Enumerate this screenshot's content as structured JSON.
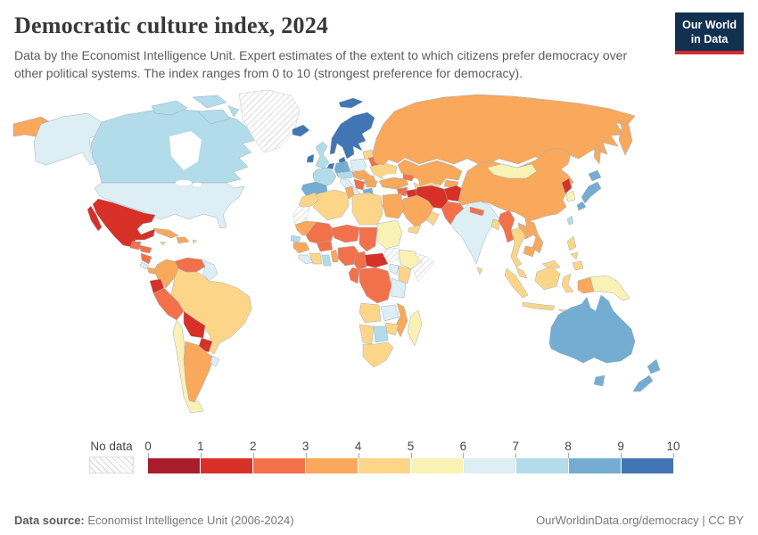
{
  "header": {
    "title": "Democratic culture index, 2024",
    "subtitle": "Data by the Economist Intelligence Unit. Expert estimates of the extent to which citizens prefer democracy over other political systems. The index ranges from 0 to 10 (strongest preference for democracy).",
    "logo": {
      "line1": "Our World",
      "line2": "in Data",
      "bg_color": "#12304F",
      "accent_color": "#D7282F"
    }
  },
  "legend": {
    "no_data_label": "No data",
    "ticks": [
      "0",
      "1",
      "2",
      "3",
      "4",
      "5",
      "6",
      "7",
      "8",
      "9",
      "10"
    ]
  },
  "footer": {
    "source_label": "Data source:",
    "source_value": "Economist Intelligence Unit (2006-2024)",
    "link": "OurWorldinData.org/democracy",
    "separator": "|",
    "license": "CC BY"
  },
  "chart_data": {
    "type": "heatmap",
    "subtype": "choropleth-world-map",
    "title": "Democratic culture index, 2024",
    "legend_position": "bottom",
    "scale": {
      "min": 0,
      "max": 10,
      "no_data_style": "hatched",
      "bins": [
        {
          "range": "0-1",
          "color": "#A81C2B"
        },
        {
          "range": "1-2",
          "color": "#D73027"
        },
        {
          "range": "2-3",
          "color": "#F2714B"
        },
        {
          "range": "3-4",
          "color": "#F9A85C"
        },
        {
          "range": "4-5",
          "color": "#FDD588"
        },
        {
          "range": "5-6",
          "color": "#FAF2B4"
        },
        {
          "range": "6-7",
          "color": "#DDEEF5"
        },
        {
          "range": "7-8",
          "color": "#B3DCEA"
        },
        {
          "range": "8-9",
          "color": "#74ADD1"
        },
        {
          "range": "9-10",
          "color": "#4275B4"
        }
      ]
    },
    "countries": [
      {
        "key": "canada",
        "name": "Canada",
        "range": "7-8",
        "bin": 7
      },
      {
        "key": "arctic-islands",
        "name": "Canada (Arctic islands)",
        "range": "7-8",
        "bin": 7
      },
      {
        "key": "alaska",
        "name": "United States (Alaska)",
        "range": "6-7",
        "bin": 6
      },
      {
        "key": "usa",
        "name": "United States",
        "range": "6-7",
        "bin": 6
      },
      {
        "key": "greenland",
        "name": "Greenland",
        "range": "No data",
        "bin": -1
      },
      {
        "key": "mexico",
        "name": "Mexico",
        "range": "1-2",
        "bin": 1
      },
      {
        "key": "guatemala",
        "name": "Guatemala",
        "range": "2-3",
        "bin": 2
      },
      {
        "key": "honduras",
        "name": "Honduras",
        "range": "2-3",
        "bin": 2
      },
      {
        "key": "nicaragua",
        "name": "Nicaragua",
        "range": "2-3",
        "bin": 2
      },
      {
        "key": "costa-rica",
        "name": "Costa Rica",
        "range": "6-7",
        "bin": 6
      },
      {
        "key": "panama",
        "name": "Panama",
        "range": "3-4",
        "bin": 3
      },
      {
        "key": "cuba",
        "name": "Cuba",
        "range": "3-4",
        "bin": 3
      },
      {
        "key": "jamaica",
        "name": "Jamaica",
        "range": "4-5",
        "bin": 4
      },
      {
        "key": "hispaniola",
        "name": "Haiti / Dominican Republic",
        "range": "3-4",
        "bin": 3
      },
      {
        "key": "puerto-rico",
        "name": "Puerto Rico",
        "range": "4-5",
        "bin": 4
      },
      {
        "key": "colombia",
        "name": "Colombia",
        "range": "3-4",
        "bin": 3
      },
      {
        "key": "venezuela",
        "name": "Venezuela",
        "range": "2-3",
        "bin": 2
      },
      {
        "key": "guyanas",
        "name": "Guyana / Suriname",
        "range": "6-7",
        "bin": 6
      },
      {
        "key": "ecuador",
        "name": "Ecuador",
        "range": "1-2",
        "bin": 1
      },
      {
        "key": "peru",
        "name": "Peru",
        "range": "2-3",
        "bin": 2
      },
      {
        "key": "brazil",
        "name": "Brazil",
        "range": "4-5",
        "bin": 4
      },
      {
        "key": "bolivia",
        "name": "Bolivia",
        "range": "1-2",
        "bin": 1
      },
      {
        "key": "paraguay",
        "name": "Paraguay",
        "range": "1-2",
        "bin": 1
      },
      {
        "key": "chile",
        "name": "Chile",
        "range": "5-6",
        "bin": 5
      },
      {
        "key": "argentina",
        "name": "Argentina",
        "range": "3-4",
        "bin": 3
      },
      {
        "key": "uruguay",
        "name": "Uruguay",
        "range": "6-7",
        "bin": 6
      },
      {
        "key": "iceland",
        "name": "Iceland",
        "range": "9-10",
        "bin": 9
      },
      {
        "key": "svalbard",
        "name": "Svalbard (Norway)",
        "range": "9-10",
        "bin": 9
      },
      {
        "key": "scandinavia",
        "name": "Norway / Sweden / Finland",
        "range": "9-10",
        "bin": 9
      },
      {
        "key": "denmark",
        "name": "Denmark",
        "range": "9-10",
        "bin": 9
      },
      {
        "key": "ireland",
        "name": "Ireland",
        "range": "9-10",
        "bin": 9
      },
      {
        "key": "uk",
        "name": "United Kingdom",
        "range": "7-8",
        "bin": 7
      },
      {
        "key": "netherlands",
        "name": "Netherlands / Belgium",
        "range": "9-10",
        "bin": 9
      },
      {
        "key": "germany",
        "name": "Germany",
        "range": "8-9",
        "bin": 8
      },
      {
        "key": "france",
        "name": "France",
        "range": "7-8",
        "bin": 7
      },
      {
        "key": "iberia",
        "name": "Spain / Portugal",
        "range": "8-9",
        "bin": 8
      },
      {
        "key": "italy",
        "name": "Italy",
        "range": "6-7",
        "bin": 6
      },
      {
        "key": "alpine",
        "name": "Switzerland / Austria",
        "range": "7-8",
        "bin": 7
      },
      {
        "key": "poland",
        "name": "Poland",
        "range": "6-7",
        "bin": 6
      },
      {
        "key": "central-europe",
        "name": "Czechia / Slovakia / Hungary",
        "range": "3-4",
        "bin": 3
      },
      {
        "key": "baltics",
        "name": "Baltic states",
        "range": "4-5",
        "bin": 4
      },
      {
        "key": "belarus",
        "name": "Belarus",
        "range": "2-3",
        "bin": 2
      },
      {
        "key": "ukraine",
        "name": "Ukraine",
        "range": "4-5",
        "bin": 4
      },
      {
        "key": "romania",
        "name": "Romania",
        "range": "3-4",
        "bin": 3
      },
      {
        "key": "bulgaria",
        "name": "Bulgaria",
        "range": "3-4",
        "bin": 3
      },
      {
        "key": "balkans",
        "name": "Western Balkans",
        "range": "2-3",
        "bin": 2
      },
      {
        "key": "greece",
        "name": "Greece",
        "range": "8-9",
        "bin": 8
      },
      {
        "key": "russia",
        "name": "Russia",
        "range": "3-4",
        "bin": 3
      },
      {
        "key": "chukotka",
        "name": "Russia (Chukotka)",
        "range": "3-4",
        "bin": 3
      },
      {
        "key": "kazakhstan",
        "name": "Kazakhstan",
        "range": "3-4",
        "bin": 3
      },
      {
        "key": "uzbek-turkmen",
        "name": "Uzbekistan / Turkmenistan",
        "range": "4-5",
        "bin": 4
      },
      {
        "key": "kyrgyz-tajik",
        "name": "Kyrgyzstan / Tajikistan",
        "range": "3-4",
        "bin": 3
      },
      {
        "key": "caucasus",
        "name": "Caucasus",
        "range": "2-3",
        "bin": 2
      },
      {
        "key": "turkey",
        "name": "Turkey",
        "range": "3-4",
        "bin": 3
      },
      {
        "key": "syria",
        "name": "Syria",
        "range": "2-3",
        "bin": 2
      },
      {
        "key": "jordan-israel",
        "name": "Jordan / Israel",
        "range": "3-4",
        "bin": 3
      },
      {
        "key": "iraq",
        "name": "Iraq",
        "range": "1-2",
        "bin": 1
      },
      {
        "key": "iran",
        "name": "Iran",
        "range": "1-2",
        "bin": 1
      },
      {
        "key": "afghanistan",
        "name": "Afghanistan",
        "range": "1-2",
        "bin": 1
      },
      {
        "key": "pakistan",
        "name": "Pakistan",
        "range": "2-3",
        "bin": 2
      },
      {
        "key": "saudi-arabia",
        "name": "Saudi Arabia",
        "range": "3-4",
        "bin": 3
      },
      {
        "key": "yemen",
        "name": "Yemen",
        "range": "4-5",
        "bin": 4
      },
      {
        "key": "oman",
        "name": "Oman",
        "range": "4-5",
        "bin": 4
      },
      {
        "key": "egypt",
        "name": "Egypt",
        "range": "3-4",
        "bin": 3
      },
      {
        "key": "morocco",
        "name": "Morocco",
        "range": "4-5",
        "bin": 4
      },
      {
        "key": "western-sahara",
        "name": "Western Sahara",
        "range": "No data",
        "bin": -1
      },
      {
        "key": "algeria",
        "name": "Algeria",
        "range": "4-5",
        "bin": 4
      },
      {
        "key": "tunisia",
        "name": "Tunisia",
        "range": "3-4",
        "bin": 3
      },
      {
        "key": "libya",
        "name": "Libya",
        "range": "4-5",
        "bin": 4
      },
      {
        "key": "mauritania",
        "name": "Mauritania",
        "range": "3-4",
        "bin": 3
      },
      {
        "key": "mali",
        "name": "Mali",
        "range": "2-3",
        "bin": 2
      },
      {
        "key": "niger",
        "name": "Niger",
        "range": "2-3",
        "bin": 2
      },
      {
        "key": "chad",
        "name": "Chad",
        "range": "2-3",
        "bin": 2
      },
      {
        "key": "sudan",
        "name": "Sudan",
        "range": "5-6",
        "bin": 5
      },
      {
        "key": "senegal",
        "name": "Senegal",
        "range": "7-8",
        "bin": 7
      },
      {
        "key": "guinea",
        "name": "Guinea",
        "range": "3-4",
        "bin": 3
      },
      {
        "key": "sierra-leone-liberia",
        "name": "Sierra Leone / Liberia",
        "range": "6-7",
        "bin": 6
      },
      {
        "key": "ivory-coast",
        "name": "Cote d'Ivoire",
        "range": "4-5",
        "bin": 4
      },
      {
        "key": "ghana",
        "name": "Ghana",
        "range": "7-8",
        "bin": 7
      },
      {
        "key": "burkina-faso",
        "name": "Burkina Faso",
        "range": "2-3",
        "bin": 2
      },
      {
        "key": "togo-benin",
        "name": "Togo / Benin",
        "range": "3-4",
        "bin": 3
      },
      {
        "key": "nigeria",
        "name": "Nigeria",
        "range": "2-3",
        "bin": 2
      },
      {
        "key": "cameroon",
        "name": "Cameroon",
        "range": "2-3",
        "bin": 2
      },
      {
        "key": "central-african-republic",
        "name": "Central African Republic",
        "range": "1-2",
        "bin": 1
      },
      {
        "key": "south-sudan",
        "name": "South Sudan",
        "range": "No data",
        "bin": -1
      },
      {
        "key": "ethiopia",
        "name": "Ethiopia",
        "range": "5-6",
        "bin": 5
      },
      {
        "key": "somalia",
        "name": "Somalia",
        "range": "No data",
        "bin": -1
      },
      {
        "key": "kenya",
        "name": "Kenya",
        "range": "4-5",
        "bin": 4
      },
      {
        "key": "uganda",
        "name": "Uganda",
        "range": "6-7",
        "bin": 6
      },
      {
        "key": "drc",
        "name": "Democratic Republic of Congo",
        "range": "2-3",
        "bin": 2
      },
      {
        "key": "congo-gabon",
        "name": "Congo / Gabon",
        "range": "2-3",
        "bin": 2
      },
      {
        "key": "tanzania",
        "name": "Tanzania",
        "range": "6-7",
        "bin": 6
      },
      {
        "key": "angola",
        "name": "Angola",
        "range": "4-5",
        "bin": 4
      },
      {
        "key": "zambia",
        "name": "Zambia",
        "range": "6-7",
        "bin": 6
      },
      {
        "key": "mozambique-malawi",
        "name": "Mozambique / Malawi",
        "range": "3-4",
        "bin": 3
      },
      {
        "key": "zimbabwe",
        "name": "Zimbabwe",
        "range": "4-5",
        "bin": 4
      },
      {
        "key": "botswana",
        "name": "Botswana",
        "range": "7-8",
        "bin": 7
      },
      {
        "key": "namibia",
        "name": "Namibia",
        "range": "4-5",
        "bin": 4
      },
      {
        "key": "south-africa",
        "name": "South Africa",
        "range": "4-5",
        "bin": 4
      },
      {
        "key": "madagascar",
        "name": "Madagascar",
        "range": "5-6",
        "bin": 5
      },
      {
        "key": "india",
        "name": "India",
        "range": "6-7",
        "bin": 6
      },
      {
        "key": "nepal",
        "name": "Nepal",
        "range": "2-3",
        "bin": 2
      },
      {
        "key": "bangladesh",
        "name": "Bangladesh",
        "range": "4-5",
        "bin": 4
      },
      {
        "key": "sri-lanka",
        "name": "Sri Lanka",
        "range": "4-5",
        "bin": 4
      },
      {
        "key": "myanmar",
        "name": "Myanmar",
        "range": "2-3",
        "bin": 2
      },
      {
        "key": "thailand",
        "name": "Thailand",
        "range": "4-5",
        "bin": 4
      },
      {
        "key": "laos",
        "name": "Laos",
        "range": "3-4",
        "bin": 3
      },
      {
        "key": "vietnam",
        "name": "Vietnam",
        "range": "3-4",
        "bin": 3
      },
      {
        "key": "cambodia",
        "name": "Cambodia",
        "range": "3-4",
        "bin": 3
      },
      {
        "key": "malaysia",
        "name": "Malaysia",
        "range": "4-5",
        "bin": 4
      },
      {
        "key": "indonesia",
        "name": "Indonesia",
        "range": "4-5",
        "bin": 4
      },
      {
        "key": "west-papua",
        "name": "Indonesia (Papua)",
        "range": "3-4",
        "bin": 3
      },
      {
        "key": "papua-new-guinea",
        "name": "Papua New Guinea",
        "range": "5-6",
        "bin": 5
      },
      {
        "key": "philippines",
        "name": "Philippines",
        "range": "4-5",
        "bin": 4
      },
      {
        "key": "china",
        "name": "China",
        "range": "3-4",
        "bin": 3
      },
      {
        "key": "mongolia",
        "name": "Mongolia",
        "range": "5-6",
        "bin": 5
      },
      {
        "key": "north-korea",
        "name": "North Korea",
        "range": "1-2",
        "bin": 1
      },
      {
        "key": "south-korea",
        "name": "South Korea",
        "range": "5-6",
        "bin": 5
      },
      {
        "key": "japan",
        "name": "Japan",
        "range": "8-9",
        "bin": 8
      },
      {
        "key": "taiwan",
        "name": "Taiwan",
        "range": "7-8",
        "bin": 7
      },
      {
        "key": "australia",
        "name": "Australia",
        "range": "8-9",
        "bin": 8
      },
      {
        "key": "new-zealand",
        "name": "New Zealand",
        "range": "8-9",
        "bin": 8
      }
    ]
  }
}
